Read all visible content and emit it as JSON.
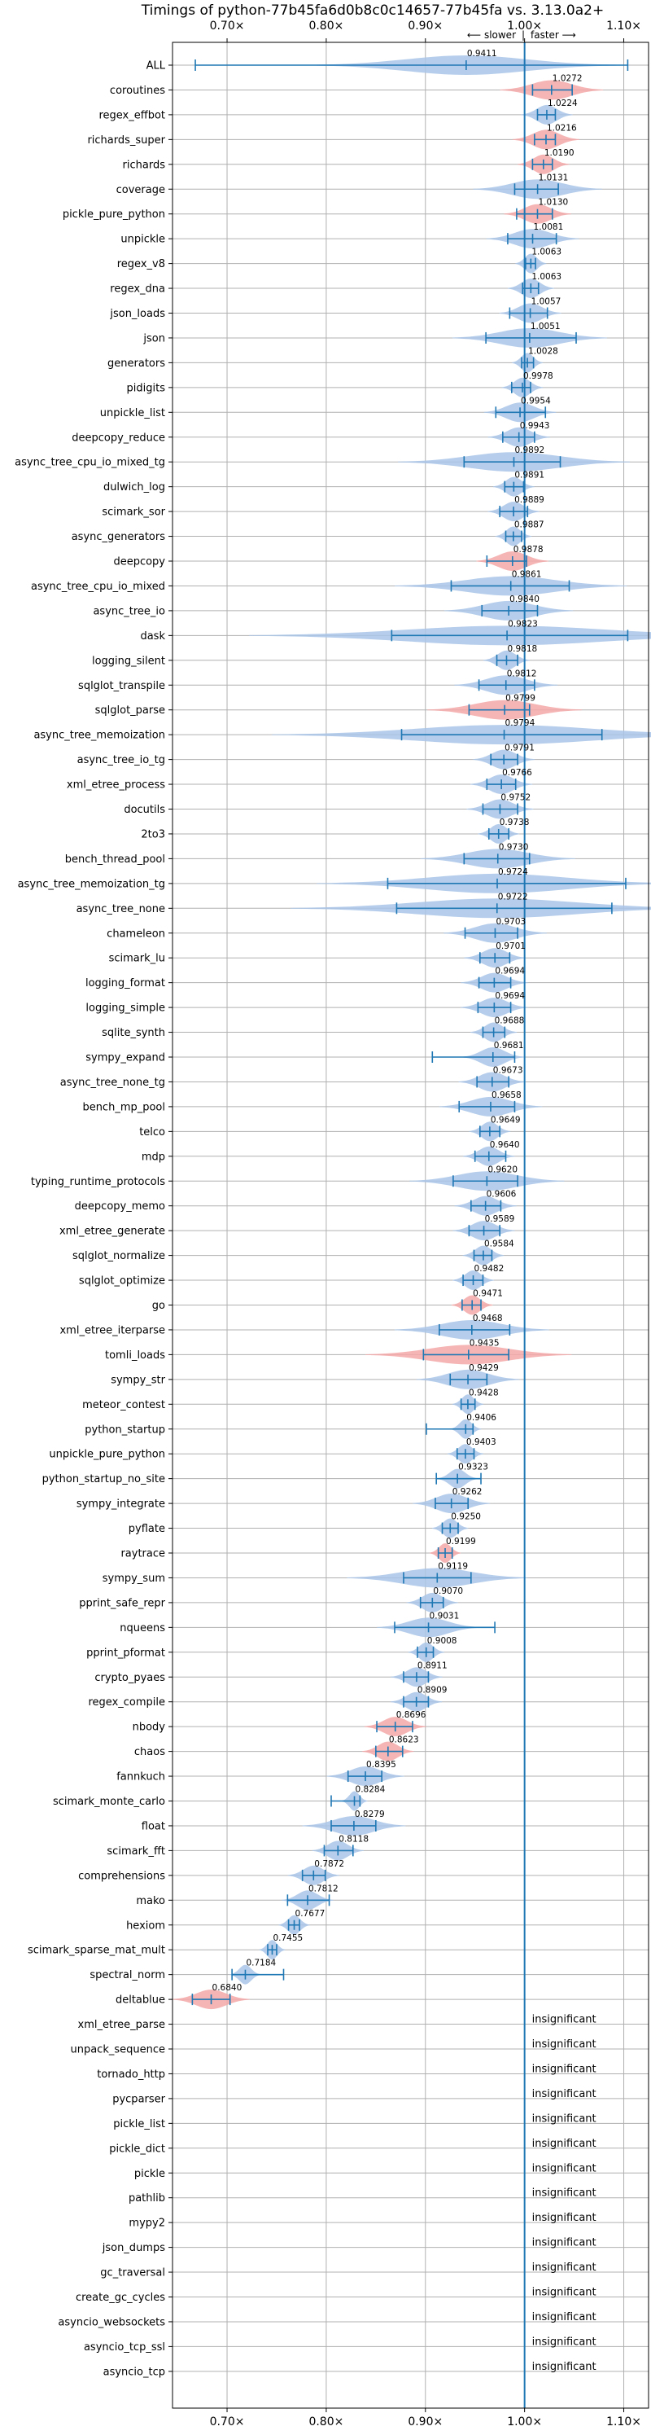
{
  "chart_data": {
    "type": "violin",
    "title": "Timings of python-77b45fa6d0b8c0c14657-77b45fa vs. 3.13.0a2+",
    "subtitle_left": "⟵ slower",
    "subtitle_sep": "|",
    "subtitle_right": "faster ⟶",
    "x_ticks": [
      0.7,
      0.8,
      0.9,
      1.0,
      1.1
    ],
    "x_tick_labels": [
      "0.70×",
      "0.80×",
      "0.90×",
      "1.00×",
      "1.10×"
    ],
    "xlim": [
      0.645,
      1.125
    ],
    "reference_line": 1.0,
    "insignificant_label": "insignificant",
    "colors": {
      "faster": "#f4a8a8",
      "normal": "#a9c6e8",
      "line": "#1f77b4",
      "reference": "#1f77b4"
    },
    "benchmarks": [
      {
        "name": "ALL",
        "value": 0.9411,
        "label": "0.9411",
        "lo": 0.668,
        "hi": 1.104,
        "spread": 0.06,
        "status": "normal"
      },
      {
        "name": "coroutines",
        "value": 1.0272,
        "label": "1.0272",
        "lo": 1.008,
        "hi": 1.048,
        "spread": 0.02,
        "status": "faster"
      },
      {
        "name": "regex_effbot",
        "value": 1.0224,
        "label": "1.0224",
        "lo": 1.013,
        "hi": 1.031,
        "spread": 0.01,
        "status": "normal"
      },
      {
        "name": "richards_super",
        "value": 1.0216,
        "label": "1.0216",
        "lo": 1.01,
        "hi": 1.031,
        "spread": 0.013,
        "status": "faster"
      },
      {
        "name": "richards",
        "value": 1.019,
        "label": "1.0190",
        "lo": 1.008,
        "hi": 1.028,
        "spread": 0.01,
        "status": "faster"
      },
      {
        "name": "coverage",
        "value": 1.0131,
        "label": "1.0131",
        "lo": 0.99,
        "hi": 1.034,
        "spread": 0.025,
        "status": "normal"
      },
      {
        "name": "pickle_pure_python",
        "value": 1.013,
        "label": "1.0130",
        "lo": 0.992,
        "hi": 1.028,
        "spread": 0.013,
        "status": "faster"
      },
      {
        "name": "unpickle",
        "value": 1.0081,
        "label": "1.0081",
        "lo": 0.983,
        "hi": 1.032,
        "spread": 0.018,
        "status": "normal"
      },
      {
        "name": "regex_v8",
        "value": 1.0063,
        "label": "1.0063",
        "lo": 1.001,
        "hi": 1.011,
        "spread": 0.006,
        "status": "normal"
      },
      {
        "name": "regex_dna",
        "value": 1.0063,
        "label": "1.0063",
        "lo": 0.998,
        "hi": 1.014,
        "spread": 0.009,
        "status": "normal"
      },
      {
        "name": "json_loads",
        "value": 1.0057,
        "label": "1.0057",
        "lo": 0.985,
        "hi": 1.023,
        "spread": 0.012,
        "status": "normal"
      },
      {
        "name": "json",
        "value": 1.0051,
        "label": "1.0051",
        "lo": 0.961,
        "hi": 1.052,
        "spread": 0.03,
        "status": "normal"
      },
      {
        "name": "generators",
        "value": 1.0028,
        "label": "1.0028",
        "lo": 0.997,
        "hi": 1.009,
        "spread": 0.006,
        "status": "normal"
      },
      {
        "name": "pidigits",
        "value": 0.9978,
        "label": "0.9978",
        "lo": 0.987,
        "hi": 1.006,
        "spread": 0.008,
        "status": "normal"
      },
      {
        "name": "unpickle_list",
        "value": 0.9954,
        "label": "0.9954",
        "lo": 0.971,
        "hi": 1.021,
        "spread": 0.014,
        "status": "normal"
      },
      {
        "name": "deepcopy_reduce",
        "value": 0.9943,
        "label": "0.9943",
        "lo": 0.978,
        "hi": 1.01,
        "spread": 0.012,
        "status": "normal"
      },
      {
        "name": "async_tree_cpu_io_mixed_tg",
        "value": 0.9892,
        "label": "0.9892",
        "lo": 0.939,
        "hi": 1.036,
        "spread": 0.045,
        "status": "normal"
      },
      {
        "name": "dulwich_log",
        "value": 0.9891,
        "label": "0.9891",
        "lo": 0.98,
        "hi": 0.999,
        "spread": 0.008,
        "status": "normal"
      },
      {
        "name": "scimark_sor",
        "value": 0.9889,
        "label": "0.9889",
        "lo": 0.975,
        "hi": 1.003,
        "spread": 0.01,
        "status": "normal"
      },
      {
        "name": "async_generators",
        "value": 0.9887,
        "label": "0.9887",
        "lo": 0.981,
        "hi": 0.997,
        "spread": 0.007,
        "status": "normal"
      },
      {
        "name": "deepcopy",
        "value": 0.9878,
        "label": "0.9878",
        "lo": 0.962,
        "hi": 1.002,
        "spread": 0.014,
        "status": "faster"
      },
      {
        "name": "async_tree_cpu_io_mixed",
        "value": 0.9861,
        "label": "0.9861",
        "lo": 0.926,
        "hi": 1.045,
        "spread": 0.045,
        "status": "normal"
      },
      {
        "name": "async_tree_io",
        "value": 0.984,
        "label": "0.9840",
        "lo": 0.957,
        "hi": 1.013,
        "spread": 0.025,
        "status": "normal"
      },
      {
        "name": "dask",
        "value": 0.9823,
        "label": "0.9823",
        "lo": 0.866,
        "hi": 1.104,
        "spread": 0.1,
        "status": "normal"
      },
      {
        "name": "logging_silent",
        "value": 0.9818,
        "label": "0.9818",
        "lo": 0.972,
        "hi": 0.993,
        "spread": 0.009,
        "status": "normal"
      },
      {
        "name": "sqlglot_transpile",
        "value": 0.9812,
        "label": "0.9812",
        "lo": 0.954,
        "hi": 1.01,
        "spread": 0.02,
        "status": "normal"
      },
      {
        "name": "sqlglot_parse",
        "value": 0.9799,
        "label": "0.9799",
        "lo": 0.944,
        "hi": 1.005,
        "spread": 0.03,
        "status": "faster"
      },
      {
        "name": "async_tree_memoization",
        "value": 0.9794,
        "label": "0.9794",
        "lo": 0.876,
        "hi": 1.078,
        "spread": 0.09,
        "status": "normal"
      },
      {
        "name": "async_tree_io_tg",
        "value": 0.9791,
        "label": "0.9791",
        "lo": 0.966,
        "hi": 0.993,
        "spread": 0.012,
        "status": "normal"
      },
      {
        "name": "xml_etree_process",
        "value": 0.9766,
        "label": "0.9766",
        "lo": 0.962,
        "hi": 0.991,
        "spread": 0.012,
        "status": "normal"
      },
      {
        "name": "docutils",
        "value": 0.9752,
        "label": "0.9752",
        "lo": 0.958,
        "hi": 0.993,
        "spread": 0.013,
        "status": "normal"
      },
      {
        "name": "2to3",
        "value": 0.9738,
        "label": "0.9738",
        "lo": 0.964,
        "hi": 0.984,
        "spread": 0.008,
        "status": "normal"
      },
      {
        "name": "bench_thread_pool",
        "value": 0.973,
        "label": "0.9730",
        "lo": 0.939,
        "hi": 1.005,
        "spread": 0.03,
        "status": "normal"
      },
      {
        "name": "async_tree_memoization_tg",
        "value": 0.9724,
        "label": "0.9724",
        "lo": 0.862,
        "hi": 1.102,
        "spread": 0.07,
        "status": "normal"
      },
      {
        "name": "async_tree_none",
        "value": 0.9722,
        "label": "0.9722",
        "lo": 0.871,
        "hi": 1.088,
        "spread": 0.08,
        "status": "normal"
      },
      {
        "name": "chameleon",
        "value": 0.9703,
        "label": "0.9703",
        "lo": 0.94,
        "hi": 0.993,
        "spread": 0.02,
        "status": "normal"
      },
      {
        "name": "scimark_lu",
        "value": 0.9701,
        "label": "0.9701",
        "lo": 0.955,
        "hi": 0.985,
        "spread": 0.012,
        "status": "normal"
      },
      {
        "name": "logging_format",
        "value": 0.9694,
        "label": "0.9694",
        "lo": 0.954,
        "hi": 0.986,
        "spread": 0.013,
        "status": "normal"
      },
      {
        "name": "logging_simple",
        "value": 0.9694,
        "label": "0.9694",
        "lo": 0.953,
        "hi": 0.986,
        "spread": 0.013,
        "status": "normal"
      },
      {
        "name": "sqlite_synth",
        "value": 0.9688,
        "label": "0.9688",
        "lo": 0.958,
        "hi": 0.98,
        "spread": 0.009,
        "status": "normal"
      },
      {
        "name": "sympy_expand",
        "value": 0.9681,
        "label": "0.9681",
        "lo": 0.907,
        "hi": 0.99,
        "spread": 0.012,
        "status": "normal"
      },
      {
        "name": "async_tree_none_tg",
        "value": 0.9673,
        "label": "0.9673",
        "lo": 0.952,
        "hi": 0.984,
        "spread": 0.013,
        "status": "normal"
      },
      {
        "name": "bench_mp_pool",
        "value": 0.9658,
        "label": "0.9658",
        "lo": 0.934,
        "hi": 0.99,
        "spread": 0.02,
        "status": "normal"
      },
      {
        "name": "telco",
        "value": 0.9649,
        "label": "0.9649",
        "lo": 0.955,
        "hi": 0.975,
        "spread": 0.008,
        "status": "normal"
      },
      {
        "name": "mdp",
        "value": 0.964,
        "label": "0.9640",
        "lo": 0.95,
        "hi": 0.981,
        "spread": 0.01,
        "status": "normal"
      },
      {
        "name": "typing_runtime_protocols",
        "value": 0.962,
        "label": "0.9620",
        "lo": 0.928,
        "hi": 0.993,
        "spread": 0.03,
        "status": "normal"
      },
      {
        "name": "deepcopy_memo",
        "value": 0.9606,
        "label": "0.9606",
        "lo": 0.946,
        "hi": 0.976,
        "spread": 0.012,
        "status": "normal"
      },
      {
        "name": "xml_etree_generate",
        "value": 0.9589,
        "label": "0.9589",
        "lo": 0.944,
        "hi": 0.975,
        "spread": 0.012,
        "status": "normal"
      },
      {
        "name": "sqlglot_normalize",
        "value": 0.9584,
        "label": "0.9584",
        "lo": 0.949,
        "hi": 0.967,
        "spread": 0.008,
        "status": "normal"
      },
      {
        "name": "sqlglot_optimize",
        "value": 0.9482,
        "label": "0.9482",
        "lo": 0.938,
        "hi": 0.958,
        "spread": 0.008,
        "status": "normal"
      },
      {
        "name": "go",
        "value": 0.9471,
        "label": "0.9471",
        "lo": 0.937,
        "hi": 0.956,
        "spread": 0.008,
        "status": "faster"
      },
      {
        "name": "xml_etree_iterparse",
        "value": 0.9468,
        "label": "0.9468",
        "lo": 0.914,
        "hi": 0.985,
        "spread": 0.03,
        "status": "normal"
      },
      {
        "name": "tomli_loads",
        "value": 0.9435,
        "label": "0.9435",
        "lo": 0.898,
        "hi": 0.984,
        "spread": 0.04,
        "status": "faster"
      },
      {
        "name": "sympy_str",
        "value": 0.9429,
        "label": "0.9429",
        "lo": 0.925,
        "hi": 0.962,
        "spread": 0.02,
        "status": "normal"
      },
      {
        "name": "meteor_contest",
        "value": 0.9428,
        "label": "0.9428",
        "lo": 0.936,
        "hi": 0.95,
        "spread": 0.006,
        "status": "normal"
      },
      {
        "name": "python_startup",
        "value": 0.9406,
        "label": "0.9406",
        "lo": 0.901,
        "hi": 0.948,
        "spread": 0.006,
        "status": "normal"
      },
      {
        "name": "unpickle_pure_python",
        "value": 0.9403,
        "label": "0.9403",
        "lo": 0.932,
        "hi": 0.949,
        "spread": 0.007,
        "status": "normal"
      },
      {
        "name": "python_startup_no_site",
        "value": 0.9323,
        "label": "0.9323",
        "lo": 0.911,
        "hi": 0.956,
        "spread": 0.008,
        "status": "normal"
      },
      {
        "name": "sympy_integrate",
        "value": 0.9262,
        "label": "0.9262",
        "lo": 0.91,
        "hi": 0.943,
        "spread": 0.015,
        "status": "normal"
      },
      {
        "name": "pyflate",
        "value": 0.925,
        "label": "0.9250",
        "lo": 0.917,
        "hi": 0.933,
        "spread": 0.007,
        "status": "normal"
      },
      {
        "name": "raytrace",
        "value": 0.9199,
        "label": "0.9199",
        "lo": 0.913,
        "hi": 0.927,
        "spread": 0.006,
        "status": "faster"
      },
      {
        "name": "sympy_sum",
        "value": 0.9119,
        "label": "0.9119",
        "lo": 0.878,
        "hi": 0.946,
        "spread": 0.035,
        "status": "normal"
      },
      {
        "name": "pprint_safe_repr",
        "value": 0.907,
        "label": "0.9070",
        "lo": 0.895,
        "hi": 0.918,
        "spread": 0.01,
        "status": "normal"
      },
      {
        "name": "nqueens",
        "value": 0.9031,
        "label": "0.9031",
        "lo": 0.869,
        "hi": 0.97,
        "spread": 0.02,
        "status": "normal"
      },
      {
        "name": "pprint_pformat",
        "value": 0.9008,
        "label": "0.9008",
        "lo": 0.892,
        "hi": 0.908,
        "spread": 0.007,
        "status": "normal"
      },
      {
        "name": "crypto_pyaes",
        "value": 0.8911,
        "label": "0.8911",
        "lo": 0.878,
        "hi": 0.903,
        "spread": 0.01,
        "status": "normal"
      },
      {
        "name": "regex_compile",
        "value": 0.8909,
        "label": "0.8909",
        "lo": 0.878,
        "hi": 0.903,
        "spread": 0.01,
        "status": "normal"
      },
      {
        "name": "nbody",
        "value": 0.8696,
        "label": "0.8696",
        "lo": 0.851,
        "hi": 0.887,
        "spread": 0.012,
        "status": "faster"
      },
      {
        "name": "chaos",
        "value": 0.8623,
        "label": "0.8623",
        "lo": 0.85,
        "hi": 0.877,
        "spread": 0.01,
        "status": "faster"
      },
      {
        "name": "fannkuch",
        "value": 0.8395,
        "label": "0.8395",
        "lo": 0.822,
        "hi": 0.856,
        "spread": 0.015,
        "status": "normal"
      },
      {
        "name": "scimark_monte_carlo",
        "value": 0.8284,
        "label": "0.8284",
        "lo": 0.805,
        "hi": 0.834,
        "spread": 0.005,
        "status": "normal"
      },
      {
        "name": "float",
        "value": 0.8279,
        "label": "0.8279",
        "lo": 0.805,
        "hi": 0.85,
        "spread": 0.02,
        "status": "normal"
      },
      {
        "name": "scimark_fft",
        "value": 0.8118,
        "label": "0.8118",
        "lo": 0.798,
        "hi": 0.827,
        "spread": 0.01,
        "status": "normal"
      },
      {
        "name": "comprehensions",
        "value": 0.7872,
        "label": "0.7872",
        "lo": 0.776,
        "hi": 0.799,
        "spread": 0.01,
        "status": "normal"
      },
      {
        "name": "mako",
        "value": 0.7812,
        "label": "0.7812",
        "lo": 0.761,
        "hi": 0.803,
        "spread": 0.01,
        "status": "normal"
      },
      {
        "name": "hexiom",
        "value": 0.7677,
        "label": "0.7677",
        "lo": 0.762,
        "hi": 0.773,
        "spread": 0.006,
        "status": "normal"
      },
      {
        "name": "scimark_sparse_mat_mult",
        "value": 0.7455,
        "label": "0.7455",
        "lo": 0.741,
        "hi": 0.75,
        "spread": 0.005,
        "status": "normal"
      },
      {
        "name": "spectral_norm",
        "value": 0.7184,
        "label": "0.7184",
        "lo": 0.705,
        "hi": 0.757,
        "spread": 0.006,
        "status": "normal"
      },
      {
        "name": "deltablue",
        "value": 0.684,
        "label": "0.6840",
        "lo": 0.665,
        "hi": 0.703,
        "spread": 0.015,
        "status": "faster"
      },
      {
        "name": "xml_etree_parse",
        "status": "insignificant"
      },
      {
        "name": "unpack_sequence",
        "status": "insignificant"
      },
      {
        "name": "tornado_http",
        "status": "insignificant"
      },
      {
        "name": "pycparser",
        "status": "insignificant"
      },
      {
        "name": "pickle_list",
        "status": "insignificant"
      },
      {
        "name": "pickle_dict",
        "status": "insignificant"
      },
      {
        "name": "pickle",
        "status": "insignificant"
      },
      {
        "name": "pathlib",
        "status": "insignificant"
      },
      {
        "name": "mypy2",
        "status": "insignificant"
      },
      {
        "name": "json_dumps",
        "status": "insignificant"
      },
      {
        "name": "gc_traversal",
        "status": "insignificant"
      },
      {
        "name": "create_gc_cycles",
        "status": "insignificant"
      },
      {
        "name": "asyncio_websockets",
        "status": "insignificant"
      },
      {
        "name": "asyncio_tcp_ssl",
        "status": "insignificant"
      },
      {
        "name": "asyncio_tcp",
        "status": "insignificant"
      }
    ]
  }
}
